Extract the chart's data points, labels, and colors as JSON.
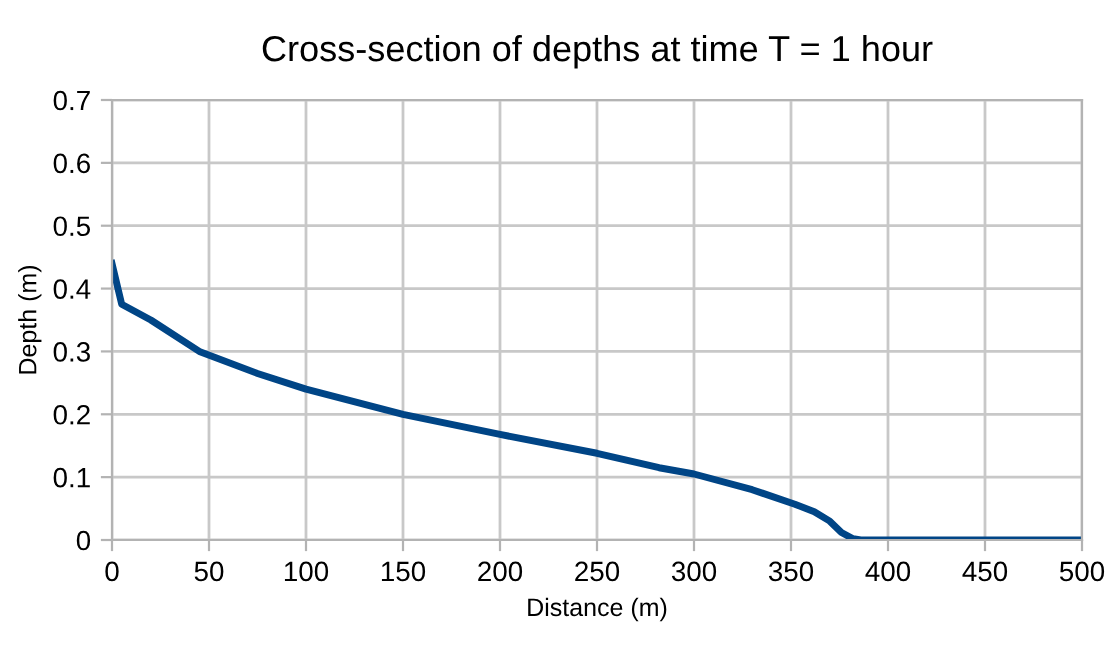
{
  "chart_data": {
    "type": "line",
    "title": "Cross-section of depths at time T = 1 hour",
    "xlabel": "Distance (m)",
    "ylabel": "Depth (m)",
    "series": [
      {
        "color": "#004586",
        "x": [
          0,
          5,
          20,
          45,
          75,
          100,
          150,
          200,
          250,
          282,
          300,
          330,
          352,
          362,
          370,
          376,
          382,
          386,
          400,
          450,
          500
        ],
        "values": [
          0.44,
          0.375,
          0.35,
          0.3,
          0.265,
          0.24,
          0.2,
          0.168,
          0.138,
          0.115,
          0.105,
          0.08,
          0.057,
          0.045,
          0.03,
          0.012,
          0.002,
          0,
          0,
          0,
          0
        ]
      }
    ],
    "xlim": [
      0,
      500
    ],
    "xticks": [
      0,
      50,
      100,
      150,
      200,
      250,
      300,
      350,
      400,
      450,
      500
    ],
    "ylim": [
      0,
      0.7
    ],
    "yticks": [
      0,
      0.1,
      0.2,
      0.3,
      0.4,
      0.5,
      0.6,
      0.7
    ],
    "grid": true,
    "marker": "none",
    "line_style": "solid"
  }
}
